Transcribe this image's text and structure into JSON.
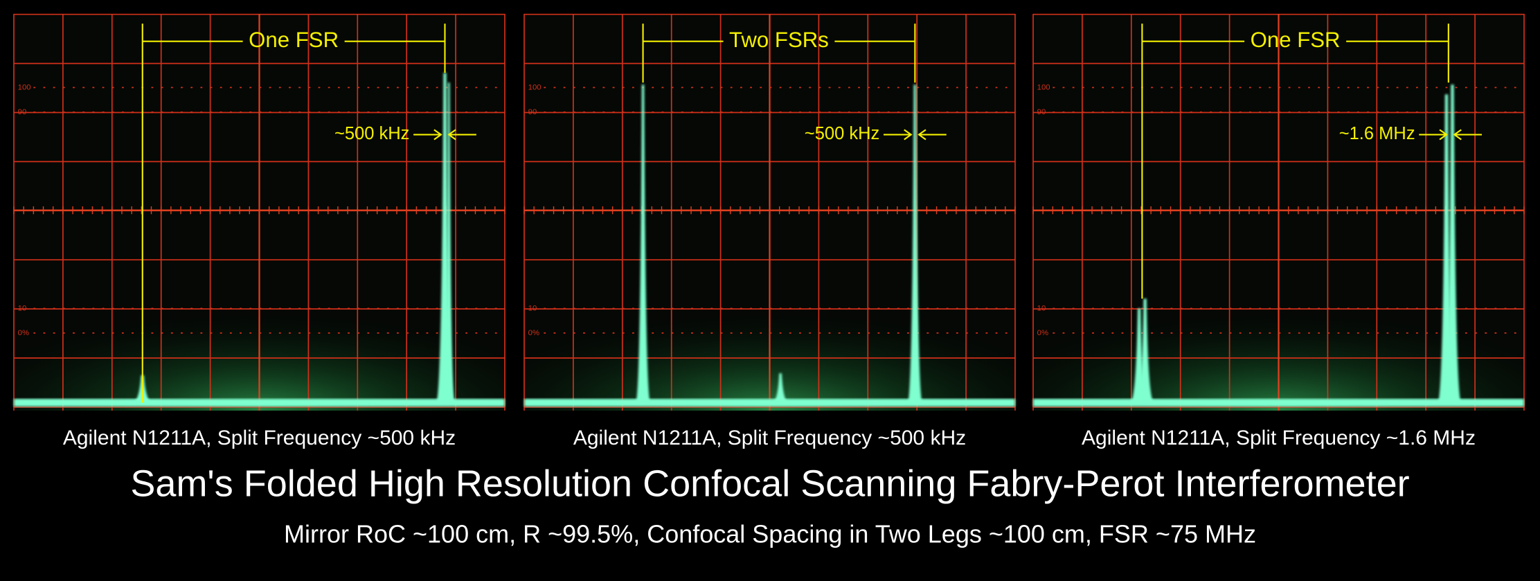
{
  "panels": [
    {
      "annotation": "One FSR",
      "split_label": "~500 kHz",
      "scale_labels": [
        "100",
        "90",
        "10",
        "0%"
      ],
      "caption": "Agilent N1211A, Split Frequency ~500 kHz"
    },
    {
      "annotation": "Two FSRs",
      "split_label": "~500 kHz",
      "scale_labels": [
        "100",
        "90",
        "10",
        "0%"
      ],
      "caption": "Agilent N1211A, Split Frequency ~500 kHz"
    },
    {
      "annotation": "One FSR",
      "split_label": "~1.6 MHz",
      "scale_labels": [
        "100",
        "90",
        "10",
        "0%"
      ],
      "caption": "Agilent N1211A, Split Frequency ~1.6 MHz"
    }
  ],
  "title": "Sam's Folded High Resolution Confocal Scanning Fabry-Perot Interferometer",
  "subtitle": "Mirror RoC ~100 cm, R ~99.5%, Confocal Spacing in Two Legs ~100 cm, FSR ~75 MHz"
}
